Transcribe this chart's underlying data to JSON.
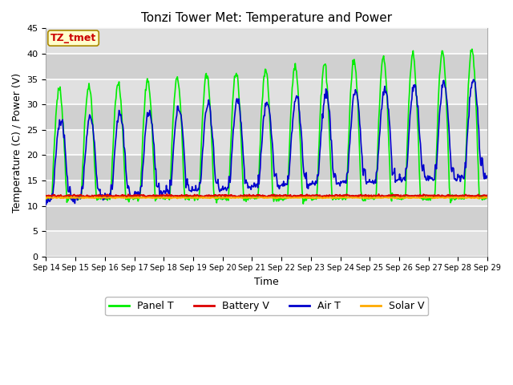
{
  "title": "Tonzi Tower Met: Temperature and Power",
  "xlabel": "Time",
  "ylabel": "Temperature (C) / Power (V)",
  "ylim": [
    0,
    45
  ],
  "yticks": [
    0,
    5,
    10,
    15,
    20,
    25,
    30,
    35,
    40,
    45
  ],
  "x_labels": [
    "Sep 14",
    "Sep 15",
    "Sep 16",
    "Sep 17",
    "Sep 18",
    "Sep 19",
    "Sep 20",
    "Sep 21",
    "Sep 22",
    "Sep 23",
    "Sep 24",
    "Sep 25",
    "Sep 26",
    "Sep 27",
    "Sep 28",
    "Sep 29"
  ],
  "annotation_text": "TZ_tmet",
  "annotation_color": "#cc0000",
  "annotation_bg": "#ffffcc",
  "annotation_border": "#aa8800",
  "panel_t_color": "#00ee00",
  "battery_v_color": "#dd0000",
  "air_t_color": "#0000cc",
  "solar_v_color": "#ffaa00",
  "fig_bg_color": "#ffffff",
  "plot_bg_color": "#e8e8e8",
  "grid_color": "#ffffff",
  "legend_labels": [
    "Panel T",
    "Battery V",
    "Air T",
    "Solar V"
  ],
  "days": 15,
  "points_per_day": 48
}
